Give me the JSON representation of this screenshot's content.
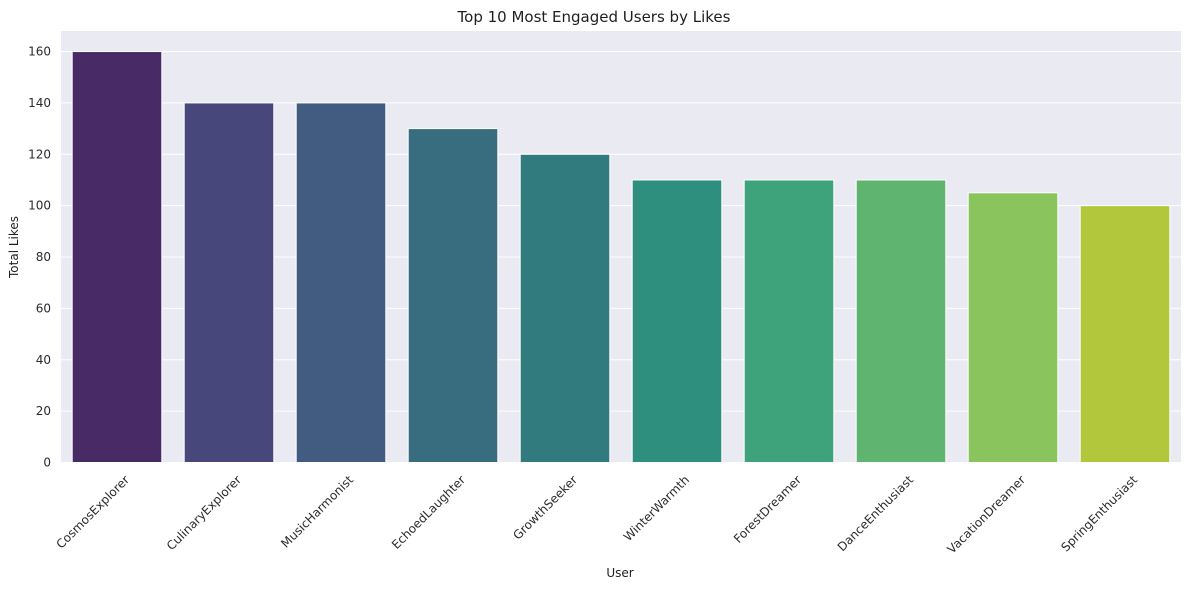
{
  "chart_data": {
    "type": "bar",
    "title": "Top 10 Most Engaged Users by Likes",
    "xlabel": "User",
    "ylabel": "Total Likes",
    "categories": [
      "CosmosExplorer",
      "CulinaryExplorer",
      "MusicHarmonist",
      "EchoedLaughter",
      "GrowthSeeker",
      "WinterWarmth",
      "ForestDreamer",
      "DanceEnthusiast",
      "VacationDreamer",
      "SpringEnthusiast"
    ],
    "values": [
      160,
      140,
      140,
      130,
      120,
      110,
      110,
      110,
      105,
      100
    ],
    "colors": [
      "#482a66",
      "#48477b",
      "#425b80",
      "#386c7f",
      "#317b7f",
      "#2f8f7f",
      "#3ea37b",
      "#5fb56f",
      "#8ac45c",
      "#b2c73b"
    ],
    "ylim": [
      0,
      168
    ],
    "yticks": [
      0,
      20,
      40,
      60,
      80,
      100,
      120,
      140,
      160
    ],
    "grid": true,
    "background_color": "#eaeaf2",
    "grid_color": "#ffffff"
  }
}
